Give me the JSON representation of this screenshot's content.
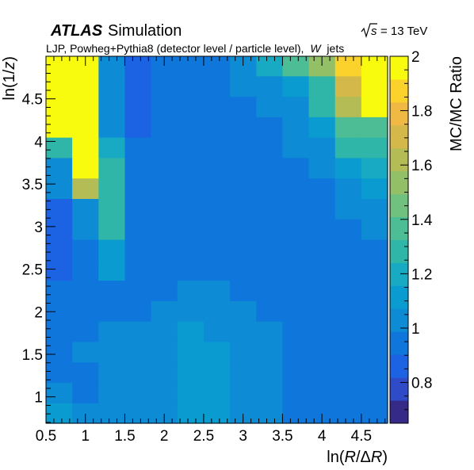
{
  "header": {
    "experiment": "ATLAS",
    "label": "Simulation",
    "energy_prefix": "s",
    "energy_suffix": "= 13 TeV",
    "description_prefix": "LJP, Powheg+Pythia8 (detector level / particle level),",
    "description_italic": "W",
    "description_suffix": "jets"
  },
  "chart_data": {
    "type": "heatmap",
    "xlabel_prefix": "ln(",
    "xlabel_italic": "R",
    "xlabel_mid": "/Δ",
    "xlabel_italic2": "R",
    "xlabel_suffix": ")",
    "ylabel_prefix": "ln(1/",
    "ylabel_italic": "z",
    "ylabel_suffix": ")",
    "zlabel": "MC/MC Ratio",
    "x_edges": [
      0.5,
      0.833,
      1.167,
      1.5,
      1.833,
      2.167,
      2.5,
      2.833,
      3.167,
      3.5,
      3.833,
      4.167,
      4.5,
      4.833
    ],
    "y_edges": [
      0.69,
      0.93,
      1.17,
      1.41,
      1.65,
      1.89,
      2.13,
      2.37,
      2.61,
      2.85,
      3.09,
      3.33,
      3.57,
      3.81,
      4.05,
      4.29,
      4.53,
      4.77,
      5.0
    ],
    "xlim": [
      0.5,
      4.833
    ],
    "ylim": [
      0.69,
      5.0
    ],
    "zlim": [
      0.65,
      2.0
    ],
    "x_ticks": [
      "0.5",
      "1",
      "1.5",
      "2",
      "2.5",
      "3",
      "3.5",
      "4",
      "4.5"
    ],
    "y_ticks": [
      "1",
      "1.5",
      "2",
      "2.5",
      "3",
      "3.5",
      "4",
      "4.5"
    ],
    "z_ticks": [
      "0.8",
      "1",
      "1.2",
      "1.4",
      "1.6",
      "1.8",
      "2"
    ],
    "values": [
      [
        1.08,
        1.0,
        1.05,
        1.05,
        1.05,
        1.08,
        1.08,
        1.05,
        1.0,
        0.98,
        0.95,
        0.95,
        0.97
      ],
      [
        1.02,
        0.93,
        1.0,
        1.03,
        1.03,
        1.08,
        1.08,
        1.05,
        1.0,
        0.98,
        0.93,
        0.92,
        0.95
      ],
      [
        0.98,
        0.97,
        1.02,
        1.03,
        1.05,
        1.08,
        1.08,
        1.05,
        1.0,
        0.98,
        0.93,
        0.92,
        0.95
      ],
      [
        0.97,
        1.0,
        1.02,
        1.03,
        1.05,
        1.08,
        1.08,
        1.05,
        1.0,
        0.98,
        0.95,
        0.92,
        0.95
      ],
      [
        0.97,
        0.97,
        1.0,
        1.0,
        1.03,
        1.08,
        1.05,
        1.03,
        1.0,
        0.97,
        0.95,
        0.93,
        0.95
      ],
      [
        0.95,
        0.95,
        0.97,
        0.97,
        1.0,
        1.05,
        1.03,
        1.0,
        0.97,
        0.95,
        0.93,
        0.93,
        0.95
      ],
      [
        0.95,
        0.95,
        0.97,
        0.95,
        0.97,
        1.0,
        1.0,
        0.97,
        0.95,
        0.93,
        0.93,
        0.92,
        0.95
      ],
      [
        0.9,
        0.95,
        1.12,
        0.95,
        0.97,
        0.97,
        0.95,
        0.93,
        0.93,
        0.93,
        0.93,
        0.92,
        0.97
      ],
      [
        0.88,
        0.95,
        1.15,
        0.95,
        0.97,
        0.97,
        0.95,
        0.93,
        0.93,
        0.93,
        0.93,
        0.92,
        0.97
      ],
      [
        0.88,
        1.05,
        1.3,
        0.97,
        0.95,
        0.97,
        0.95,
        0.93,
        0.93,
        0.93,
        0.93,
        0.95,
        1.0
      ],
      [
        0.88,
        1.05,
        1.3,
        0.97,
        0.95,
        0.97,
        0.95,
        0.95,
        0.93,
        0.93,
        0.95,
        1.0,
        1.05
      ],
      [
        1.0,
        1.62,
        1.3,
        0.97,
        0.97,
        0.97,
        0.95,
        0.95,
        0.93,
        0.95,
        0.97,
        1.05,
        1.1
      ],
      [
        1.07,
        2.0,
        1.25,
        0.95,
        0.95,
        0.95,
        0.93,
        0.95,
        0.97,
        0.97,
        1.0,
        1.15,
        1.2
      ],
      [
        1.25,
        2.0,
        1.2,
        0.93,
        0.93,
        0.93,
        0.93,
        0.95,
        0.97,
        1.0,
        1.05,
        1.25,
        1.3
      ],
      [
        2.0,
        2.0,
        1.05,
        0.88,
        0.92,
        0.93,
        0.93,
        0.95,
        0.97,
        1.02,
        1.1,
        1.35,
        1.4
      ],
      [
        2.0,
        2.0,
        1.02,
        0.88,
        0.92,
        0.93,
        0.93,
        0.97,
        1.0,
        1.05,
        1.25,
        1.65,
        2.0
      ],
      [
        2.0,
        2.0,
        1.0,
        0.9,
        0.92,
        0.95,
        0.95,
        1.0,
        1.05,
        1.1,
        1.25,
        1.7,
        2.0
      ],
      [
        2.0,
        2.0,
        1.0,
        0.9,
        0.92,
        0.95,
        0.95,
        1.05,
        1.2,
        1.35,
        1.5,
        1.85,
        2.0
      ]
    ],
    "palette": [
      "#352a87",
      "#2f4bc7",
      "#1b63e2",
      "#0f77dc",
      "#0d8bd5",
      "#0a9cd1",
      "#17aac2",
      "#2fb6a9",
      "#4cbd94",
      "#70c07f",
      "#93c067",
      "#b4bc56",
      "#d4b84a",
      "#f0b943",
      "#fbd12b",
      "#f9fb0e"
    ]
  }
}
